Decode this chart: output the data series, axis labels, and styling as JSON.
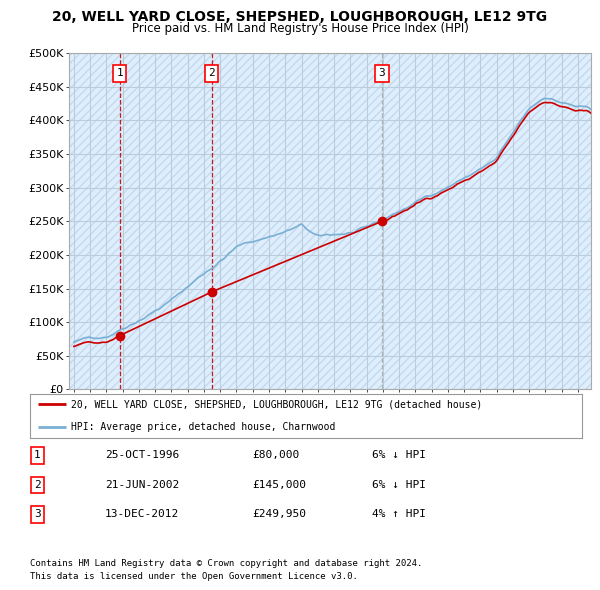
{
  "title": "20, WELL YARD CLOSE, SHEPSHED, LOUGHBOROUGH, LE12 9TG",
  "subtitle": "Price paid vs. HM Land Registry's House Price Index (HPI)",
  "transactions": [
    {
      "date_num": 1996.82,
      "price": 80000,
      "label": "1",
      "vline_color": "#cc0000"
    },
    {
      "date_num": 2002.47,
      "price": 145000,
      "label": "2",
      "vline_color": "#cc0000"
    },
    {
      "date_num": 2012.95,
      "price": 249950,
      "label": "3",
      "vline_color": "#aaaaaa"
    }
  ],
  "transaction_info": [
    {
      "num": "1",
      "date": "25-OCT-1996",
      "price": "£80,000",
      "hpi": "6% ↓ HPI"
    },
    {
      "num": "2",
      "date": "21-JUN-2002",
      "price": "£145,000",
      "hpi": "6% ↓ HPI"
    },
    {
      "num": "3",
      "date": "13-DEC-2012",
      "price": "£249,950",
      "hpi": "4% ↑ HPI"
    }
  ],
  "legend_line1": "20, WELL YARD CLOSE, SHEPSHED, LOUGHBOROUGH, LE12 9TG (detached house)",
  "legend_line2": "HPI: Average price, detached house, Charnwood",
  "footnote1": "Contains HM Land Registry data © Crown copyright and database right 2024.",
  "footnote2": "This data is licensed under the Open Government Licence v3.0.",
  "property_color": "#cc0000",
  "hpi_color": "#7aafd4",
  "ylim_max": 500000,
  "ytick_step": 50000,
  "xmin": 1993.7,
  "xmax": 2025.8,
  "chart_bg": "#ddeeff",
  "grid_color": "#bbccdd"
}
